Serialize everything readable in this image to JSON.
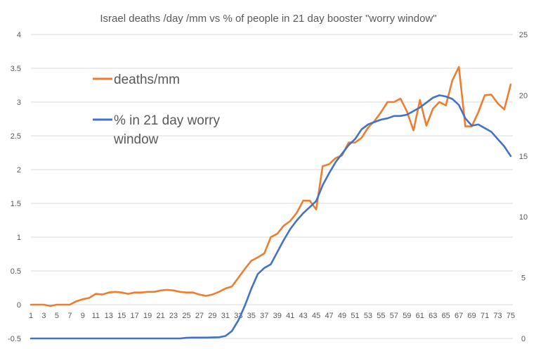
{
  "chart_data": {
    "type": "line",
    "title": "Israel deaths /day /mm vs % of people in 21 day booster \"worry window\"",
    "x": [
      1,
      2,
      3,
      4,
      5,
      6,
      7,
      8,
      9,
      10,
      11,
      12,
      13,
      14,
      15,
      16,
      17,
      18,
      19,
      20,
      21,
      22,
      23,
      24,
      25,
      26,
      27,
      28,
      29,
      30,
      31,
      32,
      33,
      34,
      35,
      36,
      37,
      38,
      39,
      40,
      41,
      42,
      43,
      44,
      45,
      46,
      47,
      48,
      49,
      50,
      51,
      52,
      53,
      54,
      55,
      56,
      57,
      58,
      59,
      60,
      61,
      62,
      63,
      64,
      65,
      66,
      67,
      68,
      69,
      70,
      71,
      72,
      73,
      74,
      75
    ],
    "x_tick_labels": [
      "1",
      "3",
      "5",
      "7",
      "9",
      "11",
      "13",
      "15",
      "17",
      "19",
      "21",
      "23",
      "25",
      "27",
      "29",
      "31",
      "33",
      "35",
      "37",
      "39",
      "41",
      "43",
      "45",
      "47",
      "49",
      "51",
      "53",
      "55",
      "57",
      "59",
      "61",
      "63",
      "65",
      "67",
      "69",
      "71",
      "73",
      "75"
    ],
    "y_left": {
      "min": -0.5,
      "max": 4,
      "ticks": [
        "-0.5",
        "0",
        "0.5",
        "1",
        "1.5",
        "2",
        "2.5",
        "3",
        "3.5",
        "4"
      ]
    },
    "y_right": {
      "min": 0,
      "max": 25,
      "ticks": [
        "0",
        "5",
        "10",
        "15",
        "20",
        "25"
      ]
    },
    "grid": true,
    "legend": "left-upper-inside",
    "series": [
      {
        "name": "deaths/mm",
        "axis": "left",
        "color": "#ed7d31",
        "values": [
          0,
          0,
          0,
          -0.02,
          0,
          0,
          0,
          0.05,
          0.08,
          0.1,
          0.16,
          0.15,
          0.18,
          0.19,
          0.18,
          0.16,
          0.18,
          0.18,
          0.19,
          0.19,
          0.21,
          0.22,
          0.21,
          0.19,
          0.18,
          0.18,
          0.15,
          0.13,
          0.15,
          0.19,
          0.24,
          0.27,
          0.4,
          0.53,
          0.65,
          0.7,
          0.76,
          1,
          1.05,
          1.17,
          1.24,
          1.36,
          1.54,
          1.54,
          1.41,
          2.05,
          2.08,
          2.17,
          2.21,
          2.4,
          2.4,
          2.47,
          2.62,
          2.72,
          2.85,
          3,
          3,
          3.05,
          2.86,
          2.58,
          3.03,
          2.65,
          2.9,
          3,
          2.95,
          3.32,
          3.52,
          2.64,
          2.64,
          2.85,
          3.1,
          3.11,
          2.98,
          2.89,
          3.26
        ]
      },
      {
        "name": "% in 21 day worry window",
        "axis": "right",
        "color": "#4472c4",
        "values": [
          0,
          0,
          0,
          0,
          0,
          0,
          0,
          0,
          0,
          0,
          0,
          0,
          0,
          0,
          0,
          0,
          0,
          0,
          0,
          0,
          0,
          0,
          0,
          0,
          0.05,
          0.07,
          0.07,
          0.07,
          0.08,
          0.1,
          0.2,
          0.6,
          1.5,
          2.7,
          4.1,
          5.3,
          5.8,
          6.1,
          7.1,
          8.1,
          9,
          9.7,
          10.3,
          10.8,
          11.3,
          12.6,
          13.6,
          14.5,
          15.2,
          15.9,
          16.4,
          17.2,
          17.6,
          17.8,
          18,
          18.1,
          18.3,
          18.3,
          18.4,
          18.7,
          19,
          19.4,
          19.8,
          20,
          19.9,
          19.7,
          19.2,
          18.1,
          17.5,
          17.6,
          17.3,
          17,
          16.4,
          15.8,
          15
        ]
      }
    ],
    "legend_entries": [
      {
        "label": "deaths/mm",
        "color": "#ed7d31"
      },
      {
        "label_line1": "% in 21 day worry",
        "label_line2": "window",
        "color": "#4472c4"
      }
    ]
  }
}
